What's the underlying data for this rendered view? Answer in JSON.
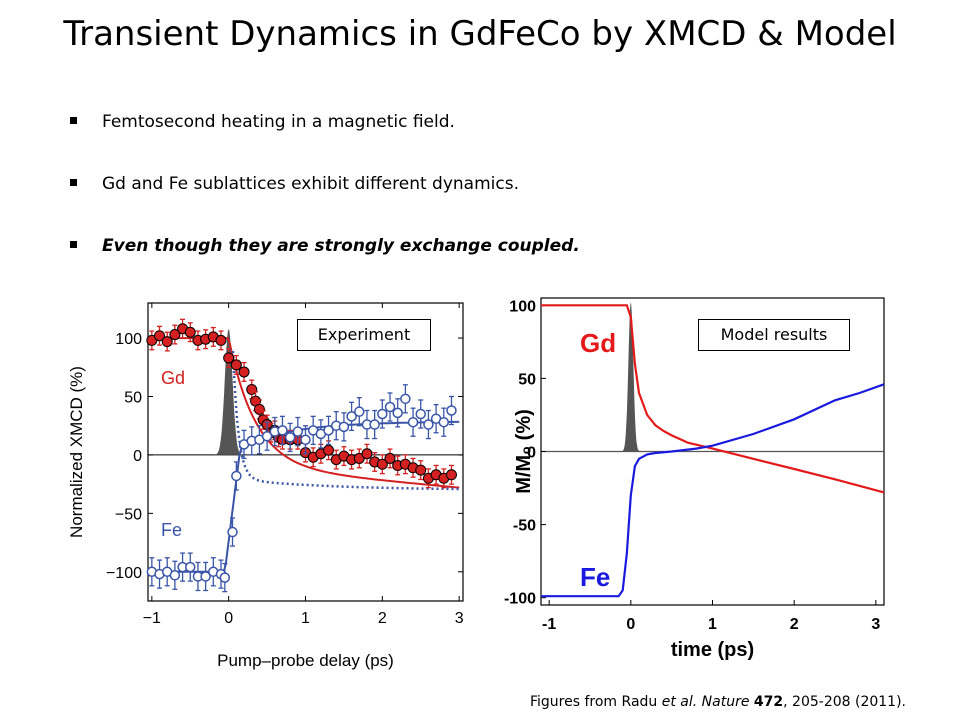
{
  "title": "Transient Dynamics in GdFeCo by XMCD & Model",
  "bullets": [
    {
      "text": "Femtosecond heating in a magnetic field."
    },
    {
      "text": "Gd and Fe sublattices exhibit different dynamics."
    },
    {
      "text": "Even though they are strongly exchange coupled."
    }
  ],
  "colors": {
    "gd": "#d42020",
    "fe": "#3a55a8",
    "gd_model": "#e41a1a",
    "fe_model": "#1a1adf",
    "pump": "#555555"
  },
  "chart_data": [
    {
      "type": "scatter",
      "tag_label": "Experiment",
      "xlabel": "Pump–probe delay (ps)",
      "ylabel": "Normalized XMCD (%)",
      "xlim": [
        -1.05,
        3.05
      ],
      "ylim": [
        -125,
        130
      ],
      "xticks": [
        "−1",
        "0",
        "1",
        "2",
        "3"
      ],
      "yticks": [
        "−100",
        "−50",
        "0",
        "50",
        "100"
      ],
      "series": [
        {
          "name": "Gd",
          "x": [
            -1.0,
            -0.9,
            -0.8,
            -0.7,
            -0.6,
            -0.5,
            -0.4,
            -0.3,
            -0.2,
            -0.1,
            0.0,
            0.1,
            0.2,
            0.3,
            0.35,
            0.4,
            0.45,
            0.5,
            0.55,
            0.6,
            0.65,
            0.7,
            0.8,
            0.9,
            1.0,
            1.1,
            1.2,
            1.3,
            1.4,
            1.5,
            1.6,
            1.7,
            1.8,
            1.9,
            2.0,
            2.1,
            2.2,
            2.3,
            2.4,
            2.5,
            2.6,
            2.7,
            2.8,
            2.9
          ],
          "y": [
            98,
            102,
            97,
            103,
            108,
            105,
            98,
            99,
            101,
            98,
            83,
            77,
            71,
            56,
            46,
            39,
            30,
            26,
            19,
            21,
            15,
            13,
            13,
            13,
            2,
            -2,
            1,
            4,
            -4,
            -1,
            -4,
            -3,
            1,
            -6,
            -8,
            -3,
            -9,
            -8,
            -11,
            -13,
            -20,
            -17,
            -20,
            -17
          ],
          "error": 8
        },
        {
          "name": "Fe",
          "x": [
            -1.0,
            -0.9,
            -0.8,
            -0.7,
            -0.6,
            -0.5,
            -0.4,
            -0.3,
            -0.2,
            -0.1,
            -0.05,
            0.05,
            0.1,
            0.2,
            0.3,
            0.4,
            0.5,
            0.6,
            0.7,
            0.8,
            0.9,
            1.0,
            1.1,
            1.2,
            1.3,
            1.4,
            1.5,
            1.6,
            1.7,
            1.8,
            1.9,
            2.0,
            2.1,
            2.2,
            2.3,
            2.4,
            2.5,
            2.6,
            2.7,
            2.8,
            2.9
          ],
          "y": [
            -100,
            -102,
            -100,
            -103,
            -96,
            -96,
            -104,
            -104,
            -100,
            -102,
            -105,
            -66,
            -18,
            9,
            12,
            13,
            16,
            20,
            21,
            15,
            20,
            13,
            21,
            18,
            21,
            25,
            24,
            33,
            37,
            26,
            26,
            35,
            41,
            36,
            48,
            28,
            35,
            26,
            31,
            28,
            38
          ],
          "error": 12
        }
      ],
      "annotations": [
        "Gd",
        "Fe"
      ]
    },
    {
      "type": "line",
      "tag_label": "Model results",
      "xlabel": "time (ps)",
      "ylabel": "M/M₀ (%)",
      "xlim": [
        -1.1,
        3.1
      ],
      "ylim": [
        -105,
        105
      ],
      "xticks": [
        "-1",
        "0",
        "1",
        "2",
        "3"
      ],
      "yticks": [
        "100",
        "50",
        "0",
        "-50",
        "-100"
      ],
      "series": [
        {
          "name": "Gd",
          "x": [
            -1.1,
            -0.05,
            0.0,
            0.05,
            0.1,
            0.2,
            0.3,
            0.4,
            0.5,
            0.7,
            1.0,
            1.5,
            2.0,
            2.5,
            3.1
          ],
          "y": [
            100,
            100,
            92,
            60,
            40,
            25,
            18,
            14,
            11,
            6,
            2,
            -5,
            -12,
            -19,
            -28
          ]
        },
        {
          "name": "Fe",
          "x": [
            -1.1,
            -0.15,
            -0.1,
            -0.05,
            0.0,
            0.05,
            0.1,
            0.2,
            0.3,
            0.5,
            0.8,
            1.0,
            1.5,
            2.0,
            2.5,
            2.8,
            3.1
          ],
          "y": [
            -99,
            -99,
            -95,
            -70,
            -30,
            -10,
            -5,
            -2,
            -1,
            0,
            2,
            4,
            12,
            22,
            35,
            40,
            46
          ]
        }
      ],
      "annotations": [
        "Gd",
        "Fe"
      ]
    }
  ],
  "citation": {
    "prefix": "Figures from Radu ",
    "etal": "et al.",
    "journal": " Nature",
    "volume": "472",
    "suffix": ", 205-208 (2011)."
  }
}
